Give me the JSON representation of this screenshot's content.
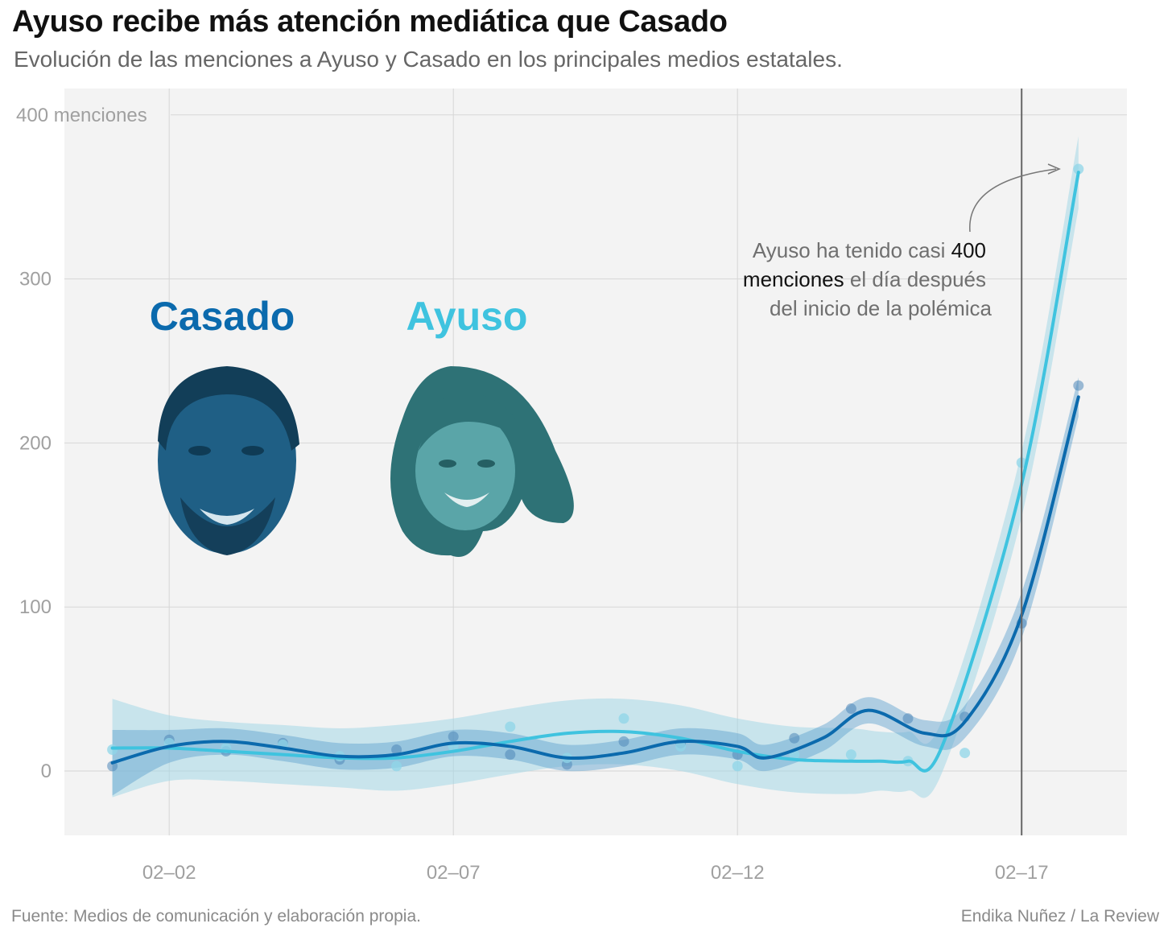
{
  "header": {
    "title": "Ayuso recibe más atención mediática que Casado",
    "subtitle": "Evolución de las menciones a Ayuso y Casado en los principales medios estatales."
  },
  "footer": {
    "source": "Fuente: Medios de comunicación y elaboración propia.",
    "credit": "Endika Nuñez / La Review"
  },
  "legend": {
    "casado": "Casado",
    "ayuso": "Ayuso"
  },
  "annotation": {
    "line1_pre": "Ayuso ha tenido casi ",
    "line1_hl": "400",
    "line2_hl": "menciones",
    "line2_post": " el día después",
    "line3": "del inicio de la polémica"
  },
  "chart_data": {
    "type": "scatter",
    "title": "Ayuso recibe más atención mediática que Casado",
    "x_ticks": [
      "02–02",
      "02–07",
      "02–12",
      "02–17"
    ],
    "x_tick_days": [
      2,
      7,
      12,
      17
    ],
    "y_ticks": [
      0,
      100,
      200,
      300
    ],
    "y_top_label": "400 menciones",
    "y_top_value": 400,
    "xlim": [
      0.1,
      18.9
    ],
    "ylim": [
      -40,
      415
    ],
    "reference_line_day": 17,
    "grid": true,
    "smoothed_lines": true,
    "confidence_bands": true,
    "colors": {
      "casado": "#0b6aad",
      "ayuso": "#3fc3df",
      "casado_band": "#5aa0cf",
      "ayuso_band": "#9ed6e5",
      "background": "#f2f2f2",
      "grid": "#d6d6d6"
    },
    "series": [
      {
        "name": "Casado",
        "days": [
          1,
          2,
          3,
          4,
          5,
          6,
          7,
          8,
          9,
          10,
          11,
          12,
          13,
          14,
          15,
          16,
          17,
          18
        ],
        "values": [
          3,
          19,
          12,
          17,
          7,
          13,
          21,
          10,
          4,
          18,
          17,
          10,
          20,
          38,
          32,
          33,
          90,
          235
        ],
        "smooth": [
          5,
          15,
          18,
          14,
          9,
          10,
          17,
          15,
          8,
          11,
          18,
          15,
          8,
          20,
          37,
          23,
          30,
          95,
          228
        ],
        "smooth_days": [
          1,
          2,
          3,
          4,
          5,
          6,
          7,
          8,
          9,
          10,
          11,
          12,
          12.5,
          13.5,
          14.3,
          15.3,
          16,
          17,
          18
        ],
        "band": [
          20,
          10,
          8,
          8,
          8,
          8,
          8,
          8,
          8,
          8,
          8,
          8,
          8,
          8,
          8,
          8,
          10,
          14,
          12
        ]
      },
      {
        "name": "Ayuso",
        "days": [
          1,
          2,
          3,
          4,
          5,
          6,
          7,
          8,
          9,
          10,
          11,
          12,
          13,
          14,
          15,
          16,
          17,
          18
        ],
        "values": [
          13,
          17,
          14,
          16,
          9,
          3,
          15,
          27,
          8,
          32,
          15,
          3,
          10,
          10,
          6,
          11,
          188,
          367
        ],
        "smooth": [
          14,
          14,
          12,
          10,
          8,
          8,
          12,
          18,
          23,
          24,
          20,
          12,
          7,
          6,
          6,
          6,
          15,
          175,
          365
        ],
        "smooth_days": [
          1,
          2,
          3,
          4,
          5,
          6,
          7,
          8,
          9,
          10,
          11,
          12,
          13,
          14,
          14.5,
          15,
          15.6,
          17,
          18
        ],
        "band": [
          30,
          20,
          18,
          18,
          18,
          20,
          20,
          20,
          20,
          20,
          20,
          20,
          20,
          20,
          18,
          18,
          16,
          20,
          22
        ]
      }
    ]
  }
}
